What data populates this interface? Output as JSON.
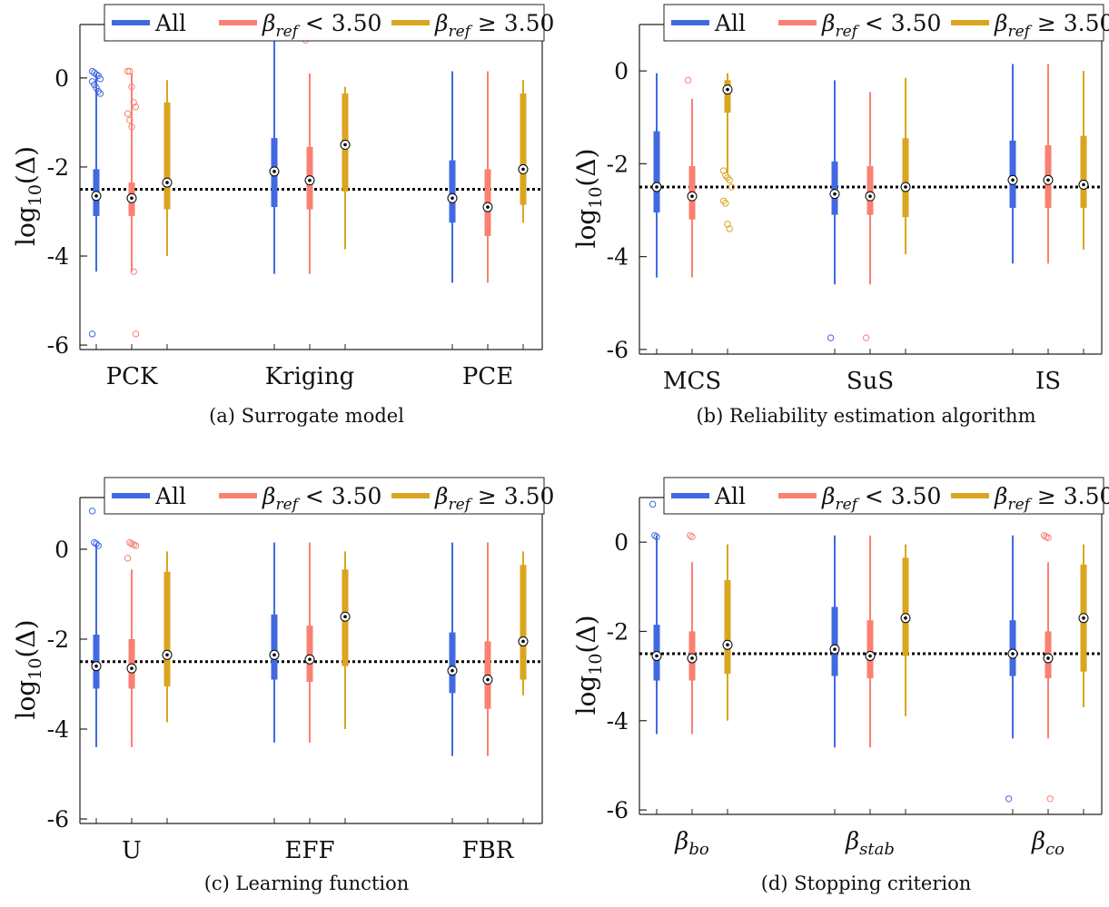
{
  "colors": {
    "all": "#4169e1",
    "low": "#fa8072",
    "high": "#daa520",
    "ref_line": "#000000"
  },
  "chart_data": [
    {
      "type": "box",
      "caption": "(a) Surrogate model",
      "ylabel_base": "log",
      "ylabel_sub": "10",
      "ylabel_arg": "(Δ)",
      "ylim": [
        -6.1,
        1.2
      ],
      "yticks": [
        "0",
        "-2",
        "-4",
        "-6"
      ],
      "ref_line_y": -2.5,
      "legend": {
        "placement": "top-right",
        "all": "All",
        "low_base": "β",
        "low_sub": "ref",
        "low_rest": " < 3.50",
        "high_base": "β",
        "high_sub": "ref",
        "high_rest": " ≥ 3.50"
      },
      "categories": [
        {
          "label": "PCK",
          "label_sub": "",
          "boxes": [
            {
              "series": "all",
              "min": -4.35,
              "q1": -3.1,
              "median": -2.65,
              "q3": -2.05,
              "max": 0.1,
              "outliers": [
                0.15,
                0.12,
                0.08,
                0.05,
                -0.02,
                -0.08,
                -0.15,
                -0.22,
                -0.3,
                -0.35,
                -5.75
              ]
            },
            {
              "series": "low",
              "min": -4.35,
              "q1": -3.1,
              "median": -2.7,
              "q3": -2.35,
              "max": 0.1,
              "outliers": [
                0.15,
                0.15,
                -0.2,
                -0.55,
                -0.65,
                -0.8,
                -0.95,
                -1.1,
                -4.35,
                -5.75
              ]
            },
            {
              "series": "high",
              "min": -4.0,
              "q1": -2.95,
              "median": -2.35,
              "q3": -0.55,
              "max": -0.05,
              "outliers": []
            }
          ]
        },
        {
          "label": "Kriging",
          "label_sub": "",
          "boxes": [
            {
              "series": "all",
              "min": -4.4,
              "q1": -2.9,
              "median": -2.1,
              "q3": -1.35,
              "max": 0.9,
              "outliers": []
            },
            {
              "series": "low",
              "min": -4.4,
              "q1": -2.95,
              "median": -2.3,
              "q3": -1.55,
              "max": 0.1,
              "outliers": [
                0.85
              ]
            },
            {
              "series": "high",
              "min": -3.85,
              "q1": -2.55,
              "median": -1.5,
              "q3": -0.35,
              "max": -0.2,
              "outliers": []
            }
          ]
        },
        {
          "label": "PCE",
          "label_sub": "",
          "boxes": [
            {
              "series": "all",
              "min": -4.6,
              "q1": -3.25,
              "median": -2.7,
              "q3": -1.85,
              "max": 0.15,
              "outliers": []
            },
            {
              "series": "low",
              "min": -4.6,
              "q1": -3.55,
              "median": -2.9,
              "q3": -2.05,
              "max": 0.15,
              "outliers": []
            },
            {
              "series": "high",
              "min": -3.25,
              "q1": -2.85,
              "median": -2.05,
              "q3": -0.35,
              "max": -0.05,
              "outliers": []
            }
          ]
        }
      ]
    },
    {
      "type": "box",
      "caption": "(b) Reliability estimation algorithm",
      "ylabel_base": "log",
      "ylabel_sub": "10",
      "ylabel_arg": "(Δ)",
      "ylim": [
        -6.1,
        1.0
      ],
      "yticks": [
        "0",
        "-2",
        "-4",
        "-6"
      ],
      "ref_line_y": -2.5,
      "legend": {
        "placement": "top-right",
        "all": "All",
        "low_base": "β",
        "low_sub": "ref",
        "low_rest": " < 3.50",
        "high_base": "β",
        "high_sub": "ref",
        "high_rest": " ≥ 3.50"
      },
      "categories": [
        {
          "label": "MCS",
          "label_sub": "",
          "boxes": [
            {
              "series": "all",
              "min": -4.45,
              "q1": -3.05,
              "median": -2.5,
              "q3": -1.3,
              "max": -0.05,
              "outliers": []
            },
            {
              "series": "low",
              "min": -4.45,
              "q1": -3.2,
              "median": -2.7,
              "q3": -2.05,
              "max": -0.6,
              "outliers": [
                -0.2
              ]
            },
            {
              "series": "high",
              "min": -2.2,
              "q1": -0.9,
              "median": -0.4,
              "q3": -0.2,
              "max": -0.05,
              "outliers": [
                -2.15,
                -2.25,
                -2.3,
                -2.35,
                -2.5,
                -2.8,
                -2.85,
                -3.3,
                -3.4
              ]
            }
          ]
        },
        {
          "label": "SuS",
          "label_sub": "",
          "boxes": [
            {
              "series": "all",
              "min": -4.6,
              "q1": -3.1,
              "median": -2.65,
              "q3": -1.95,
              "max": -0.2,
              "outliers": [
                -5.75
              ]
            },
            {
              "series": "low",
              "min": -4.6,
              "q1": -3.1,
              "median": -2.7,
              "q3": -2.05,
              "max": -0.45,
              "outliers": [
                -5.75
              ]
            },
            {
              "series": "high",
              "min": -3.95,
              "q1": -3.15,
              "median": -2.5,
              "q3": -1.45,
              "max": -0.15,
              "outliers": []
            }
          ]
        },
        {
          "label": "IS",
          "label_sub": "",
          "boxes": [
            {
              "series": "all",
              "min": -4.15,
              "q1": -2.95,
              "median": -2.35,
              "q3": -1.5,
              "max": 0.15,
              "outliers": [
                0.85
              ]
            },
            {
              "series": "low",
              "min": -4.15,
              "q1": -2.95,
              "median": -2.35,
              "q3": -1.6,
              "max": 0.15,
              "outliers": [
                0.85
              ]
            },
            {
              "series": "high",
              "min": -3.85,
              "q1": -2.95,
              "median": -2.45,
              "q3": -1.4,
              "max": 0.0,
              "outliers": []
            }
          ]
        }
      ]
    },
    {
      "type": "box",
      "caption": "(c) Learning function",
      "ylabel_base": "log",
      "ylabel_sub": "10",
      "ylabel_arg": "(Δ)",
      "ylim": [
        -6.1,
        1.15
      ],
      "yticks": [
        "0",
        "-2",
        "-4",
        "-6"
      ],
      "ref_line_y": -2.5,
      "legend": {
        "placement": "top-right",
        "all": "All",
        "low_base": "β",
        "low_sub": "ref",
        "low_rest": " < 3.50",
        "high_base": "β",
        "high_sub": "ref",
        "high_rest": " ≥ 3.50"
      },
      "categories": [
        {
          "label": "U",
          "label_sub": "",
          "boxes": [
            {
              "series": "all",
              "min": -4.4,
              "q1": -3.1,
              "median": -2.6,
              "q3": -1.9,
              "max": 0.1,
              "outliers": [
                0.85,
                0.15,
                0.12,
                0.08
              ]
            },
            {
              "series": "low",
              "min": -4.4,
              "q1": -3.1,
              "median": -2.65,
              "q3": -2.0,
              "max": -0.45,
              "outliers": [
                0.85,
                0.15,
                0.12,
                0.1,
                0.08,
                -0.2
              ]
            },
            {
              "series": "high",
              "min": -3.85,
              "q1": -3.05,
              "median": -2.35,
              "q3": -0.5,
              "max": -0.05,
              "outliers": []
            }
          ]
        },
        {
          "label": "EFF",
          "label_sub": "",
          "boxes": [
            {
              "series": "all",
              "min": -4.3,
              "q1": -2.9,
              "median": -2.35,
              "q3": -1.45,
              "max": 0.15,
              "outliers": []
            },
            {
              "series": "low",
              "min": -4.3,
              "q1": -2.95,
              "median": -2.45,
              "q3": -1.7,
              "max": 0.15,
              "outliers": []
            },
            {
              "series": "high",
              "min": -4.0,
              "q1": -2.6,
              "median": -1.5,
              "q3": -0.45,
              "max": -0.05,
              "outliers": []
            }
          ]
        },
        {
          "label": "FBR",
          "label_sub": "",
          "boxes": [
            {
              "series": "all",
              "min": -4.6,
              "q1": -3.2,
              "median": -2.7,
              "q3": -1.85,
              "max": 0.15,
              "outliers": []
            },
            {
              "series": "low",
              "min": -4.6,
              "q1": -3.55,
              "median": -2.9,
              "q3": -2.05,
              "max": 0.15,
              "outliers": []
            },
            {
              "series": "high",
              "min": -3.25,
              "q1": -2.9,
              "median": -2.05,
              "q3": -0.35,
              "max": -0.05,
              "outliers": []
            }
          ]
        }
      ]
    },
    {
      "type": "box",
      "caption": "(d) Stopping criterion",
      "ylabel_base": "log",
      "ylabel_sub": "10",
      "ylabel_arg": "(Δ)",
      "ylim": [
        -6.1,
        1.0
      ],
      "yticks": [
        "0",
        "-2",
        "-4",
        "-6"
      ],
      "ref_line_y": -2.5,
      "legend": {
        "placement": "top-right",
        "all": "All",
        "low_base": "β",
        "low_sub": "ref",
        "low_rest": " < 3.50",
        "high_base": "β",
        "high_sub": "ref",
        "high_rest": " ≥ 3.50"
      },
      "categories": [
        {
          "label": "β",
          "label_sub": "bo",
          "boxes": [
            {
              "series": "all",
              "min": -4.3,
              "q1": -3.1,
              "median": -2.55,
              "q3": -1.85,
              "max": 0.15,
              "outliers": [
                0.85,
                0.15,
                0.12
              ]
            },
            {
              "series": "low",
              "min": -4.3,
              "q1": -3.1,
              "median": -2.6,
              "q3": -2.0,
              "max": -0.45,
              "outliers": [
                0.85,
                0.15,
                0.12
              ]
            },
            {
              "series": "high",
              "min": -4.0,
              "q1": -2.95,
              "median": -2.3,
              "q3": -0.85,
              "max": -0.05,
              "outliers": []
            }
          ]
        },
        {
          "label": "β",
          "label_sub": "stab",
          "boxes": [
            {
              "series": "all",
              "min": -4.6,
              "q1": -3.0,
              "median": -2.4,
              "q3": -1.45,
              "max": 0.15,
              "outliers": []
            },
            {
              "series": "low",
              "min": -4.6,
              "q1": -3.05,
              "median": -2.55,
              "q3": -1.75,
              "max": 0.15,
              "outliers": []
            },
            {
              "series": "high",
              "min": -3.9,
              "q1": -2.55,
              "median": -1.7,
              "q3": -0.35,
              "max": -0.05,
              "outliers": []
            }
          ]
        },
        {
          "label": "β",
          "label_sub": "co",
          "boxes": [
            {
              "series": "all",
              "min": -4.4,
              "q1": -3.0,
              "median": -2.5,
              "q3": -1.75,
              "max": 0.15,
              "outliers": [
                -5.75
              ]
            },
            {
              "series": "low",
              "min": -4.4,
              "q1": -3.05,
              "median": -2.6,
              "q3": -2.0,
              "max": -0.45,
              "outliers": [
                0.15,
                0.12,
                0.1,
                -5.75
              ]
            },
            {
              "series": "high",
              "min": -3.7,
              "q1": -2.9,
              "median": -1.7,
              "q3": -0.5,
              "max": -0.05,
              "outliers": []
            }
          ]
        }
      ]
    }
  ]
}
